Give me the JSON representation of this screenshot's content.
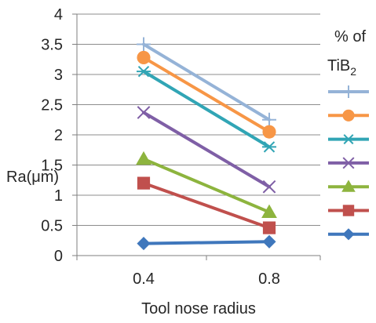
{
  "chart_data": {
    "type": "line",
    "x": [
      0.4,
      0.8
    ],
    "x_tick_labels": [
      "0.4",
      "0.8"
    ],
    "xlabel": "Tool nose radius",
    "ylabel": "Ra(μm)",
    "ylim": [
      0,
      4
    ],
    "y_tick_labels": [
      "0",
      "0.5",
      "1",
      "1.5",
      "2",
      "2.5",
      "3",
      "3.5",
      "4"
    ],
    "grid": "horizontal",
    "legend": {
      "title_line1": "% of",
      "title_line2_base": "TiB",
      "title_line2_sub": "2",
      "placement": "right"
    },
    "series": [
      {
        "color": "#95B3D7",
        "marker": "plus",
        "values": [
          3.5,
          2.25
        ]
      },
      {
        "color": "#F79646",
        "marker": "circle",
        "values": [
          3.28,
          2.05
        ]
      },
      {
        "color": "#31A5B5",
        "marker": "asterisk",
        "values": [
          3.05,
          1.8
        ]
      },
      {
        "color": "#7F5FA6",
        "marker": "x",
        "values": [
          2.37,
          1.14
        ]
      },
      {
        "color": "#8DB43E",
        "marker": "triangle",
        "values": [
          1.6,
          0.72
        ]
      },
      {
        "color": "#C0504D",
        "marker": "square",
        "values": [
          1.2,
          0.46
        ]
      },
      {
        "color": "#3F77BC",
        "marker": "diamond",
        "values": [
          0.2,
          0.23
        ]
      }
    ]
  }
}
